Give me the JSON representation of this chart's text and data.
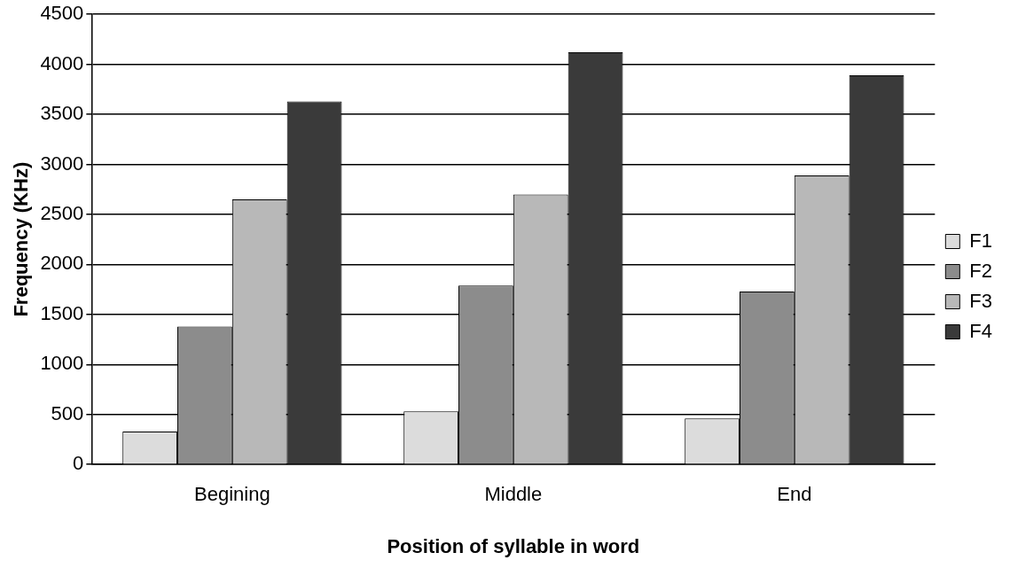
{
  "chart_data": {
    "type": "bar",
    "xlabel": "Position of syllable in word",
    "ylabel": "Frequency (KHz)",
    "categories": [
      "Begining",
      "Middle",
      "End"
    ],
    "series": [
      {
        "name": "F1",
        "color": "#dcdcdc",
        "values": [
          330,
          530,
          460
        ]
      },
      {
        "name": "F2",
        "color": "#8c8c8c",
        "values": [
          1380,
          1790,
          1730
        ]
      },
      {
        "name": "F3",
        "color": "#b8b8b8",
        "values": [
          2650,
          2700,
          2890
        ]
      },
      {
        "name": "F4",
        "color": "#3a3a3a",
        "values": [
          3630,
          4120,
          3890
        ]
      }
    ],
    "ylim": [
      0,
      4500
    ],
    "yticks": [
      0,
      500,
      1000,
      1500,
      2000,
      2500,
      3000,
      3500,
      4000,
      4500
    ],
    "grid": "y",
    "legend": "right"
  }
}
